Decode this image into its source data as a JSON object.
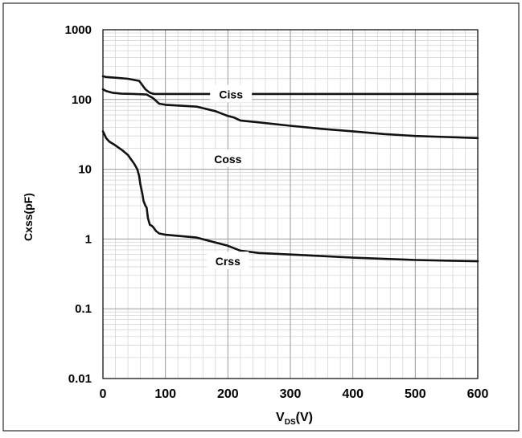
{
  "chart_data": {
    "type": "line",
    "xlabel": "V",
    "xlabel_sub": "DS",
    "xlabel_unit": "(V)",
    "ylabel": "Cxss(pF)",
    "xlim": [
      0,
      600
    ],
    "ylim": [
      0.01,
      1000
    ],
    "yscale": "log",
    "grid": true,
    "x_ticks": [
      {
        "value": 0,
        "label": "0"
      },
      {
        "value": 100,
        "label": "100"
      },
      {
        "value": 200,
        "label": "200"
      },
      {
        "value": 300,
        "label": "300"
      },
      {
        "value": 400,
        "label": "400"
      },
      {
        "value": 500,
        "label": "500"
      },
      {
        "value": 600,
        "label": "600"
      }
    ],
    "y_ticks": [
      {
        "value": 0.01,
        "label": "0.01"
      },
      {
        "value": 0.1,
        "label": "0.1"
      },
      {
        "value": 1,
        "label": "1"
      },
      {
        "value": 10,
        "label": "10"
      },
      {
        "value": 100,
        "label": "100"
      },
      {
        "value": 1000,
        "label": "1000"
      }
    ],
    "series": [
      {
        "name": "Ciss",
        "color": "#111111",
        "x": [
          0,
          5,
          20,
          40,
          58,
          62,
          68,
          75,
          80,
          83,
          100,
          200,
          300,
          400,
          500,
          600
        ],
        "y": [
          215,
          210,
          205,
          198,
          185,
          165,
          140,
          125,
          121,
          120,
          120,
          120,
          120,
          120,
          120,
          120
        ]
      },
      {
        "name": "Coss",
        "color": "#111111",
        "x": [
          0,
          5,
          15,
          30,
          50,
          70,
          80,
          90,
          100,
          150,
          180,
          200,
          210,
          220,
          250,
          300,
          350,
          400,
          450,
          500,
          550,
          600
        ],
        "y": [
          140,
          132,
          125,
          121,
          120,
          118,
          105,
          87,
          84,
          79,
          68,
          58,
          55,
          50,
          47,
          42,
          38,
          35,
          32,
          30,
          29,
          28
        ]
      },
      {
        "name": "Crss",
        "color": "#111111",
        "x": [
          0,
          2,
          5,
          10,
          20,
          30,
          40,
          50,
          55,
          58,
          60,
          63,
          65,
          68,
          70,
          72,
          75,
          78,
          80,
          85,
          90,
          100,
          150,
          200,
          220,
          250,
          300,
          350,
          400,
          450,
          500,
          550,
          600
        ],
        "y": [
          35,
          32,
          28,
          25,
          22,
          19,
          16,
          12,
          10,
          8,
          6,
          4.5,
          3.5,
          3.0,
          2.8,
          2.0,
          1.6,
          1.55,
          1.5,
          1.3,
          1.2,
          1.15,
          1.05,
          0.8,
          0.68,
          0.63,
          0.6,
          0.57,
          0.54,
          0.52,
          0.5,
          0.49,
          0.48
        ]
      }
    ],
    "annotations": [
      {
        "text": "Ciss",
        "x": 205,
        "y": 118
      },
      {
        "text": "Coss",
        "x": 200,
        "y": 14
      },
      {
        "text": "Crss",
        "x": 200,
        "y": 0.48
      }
    ]
  }
}
